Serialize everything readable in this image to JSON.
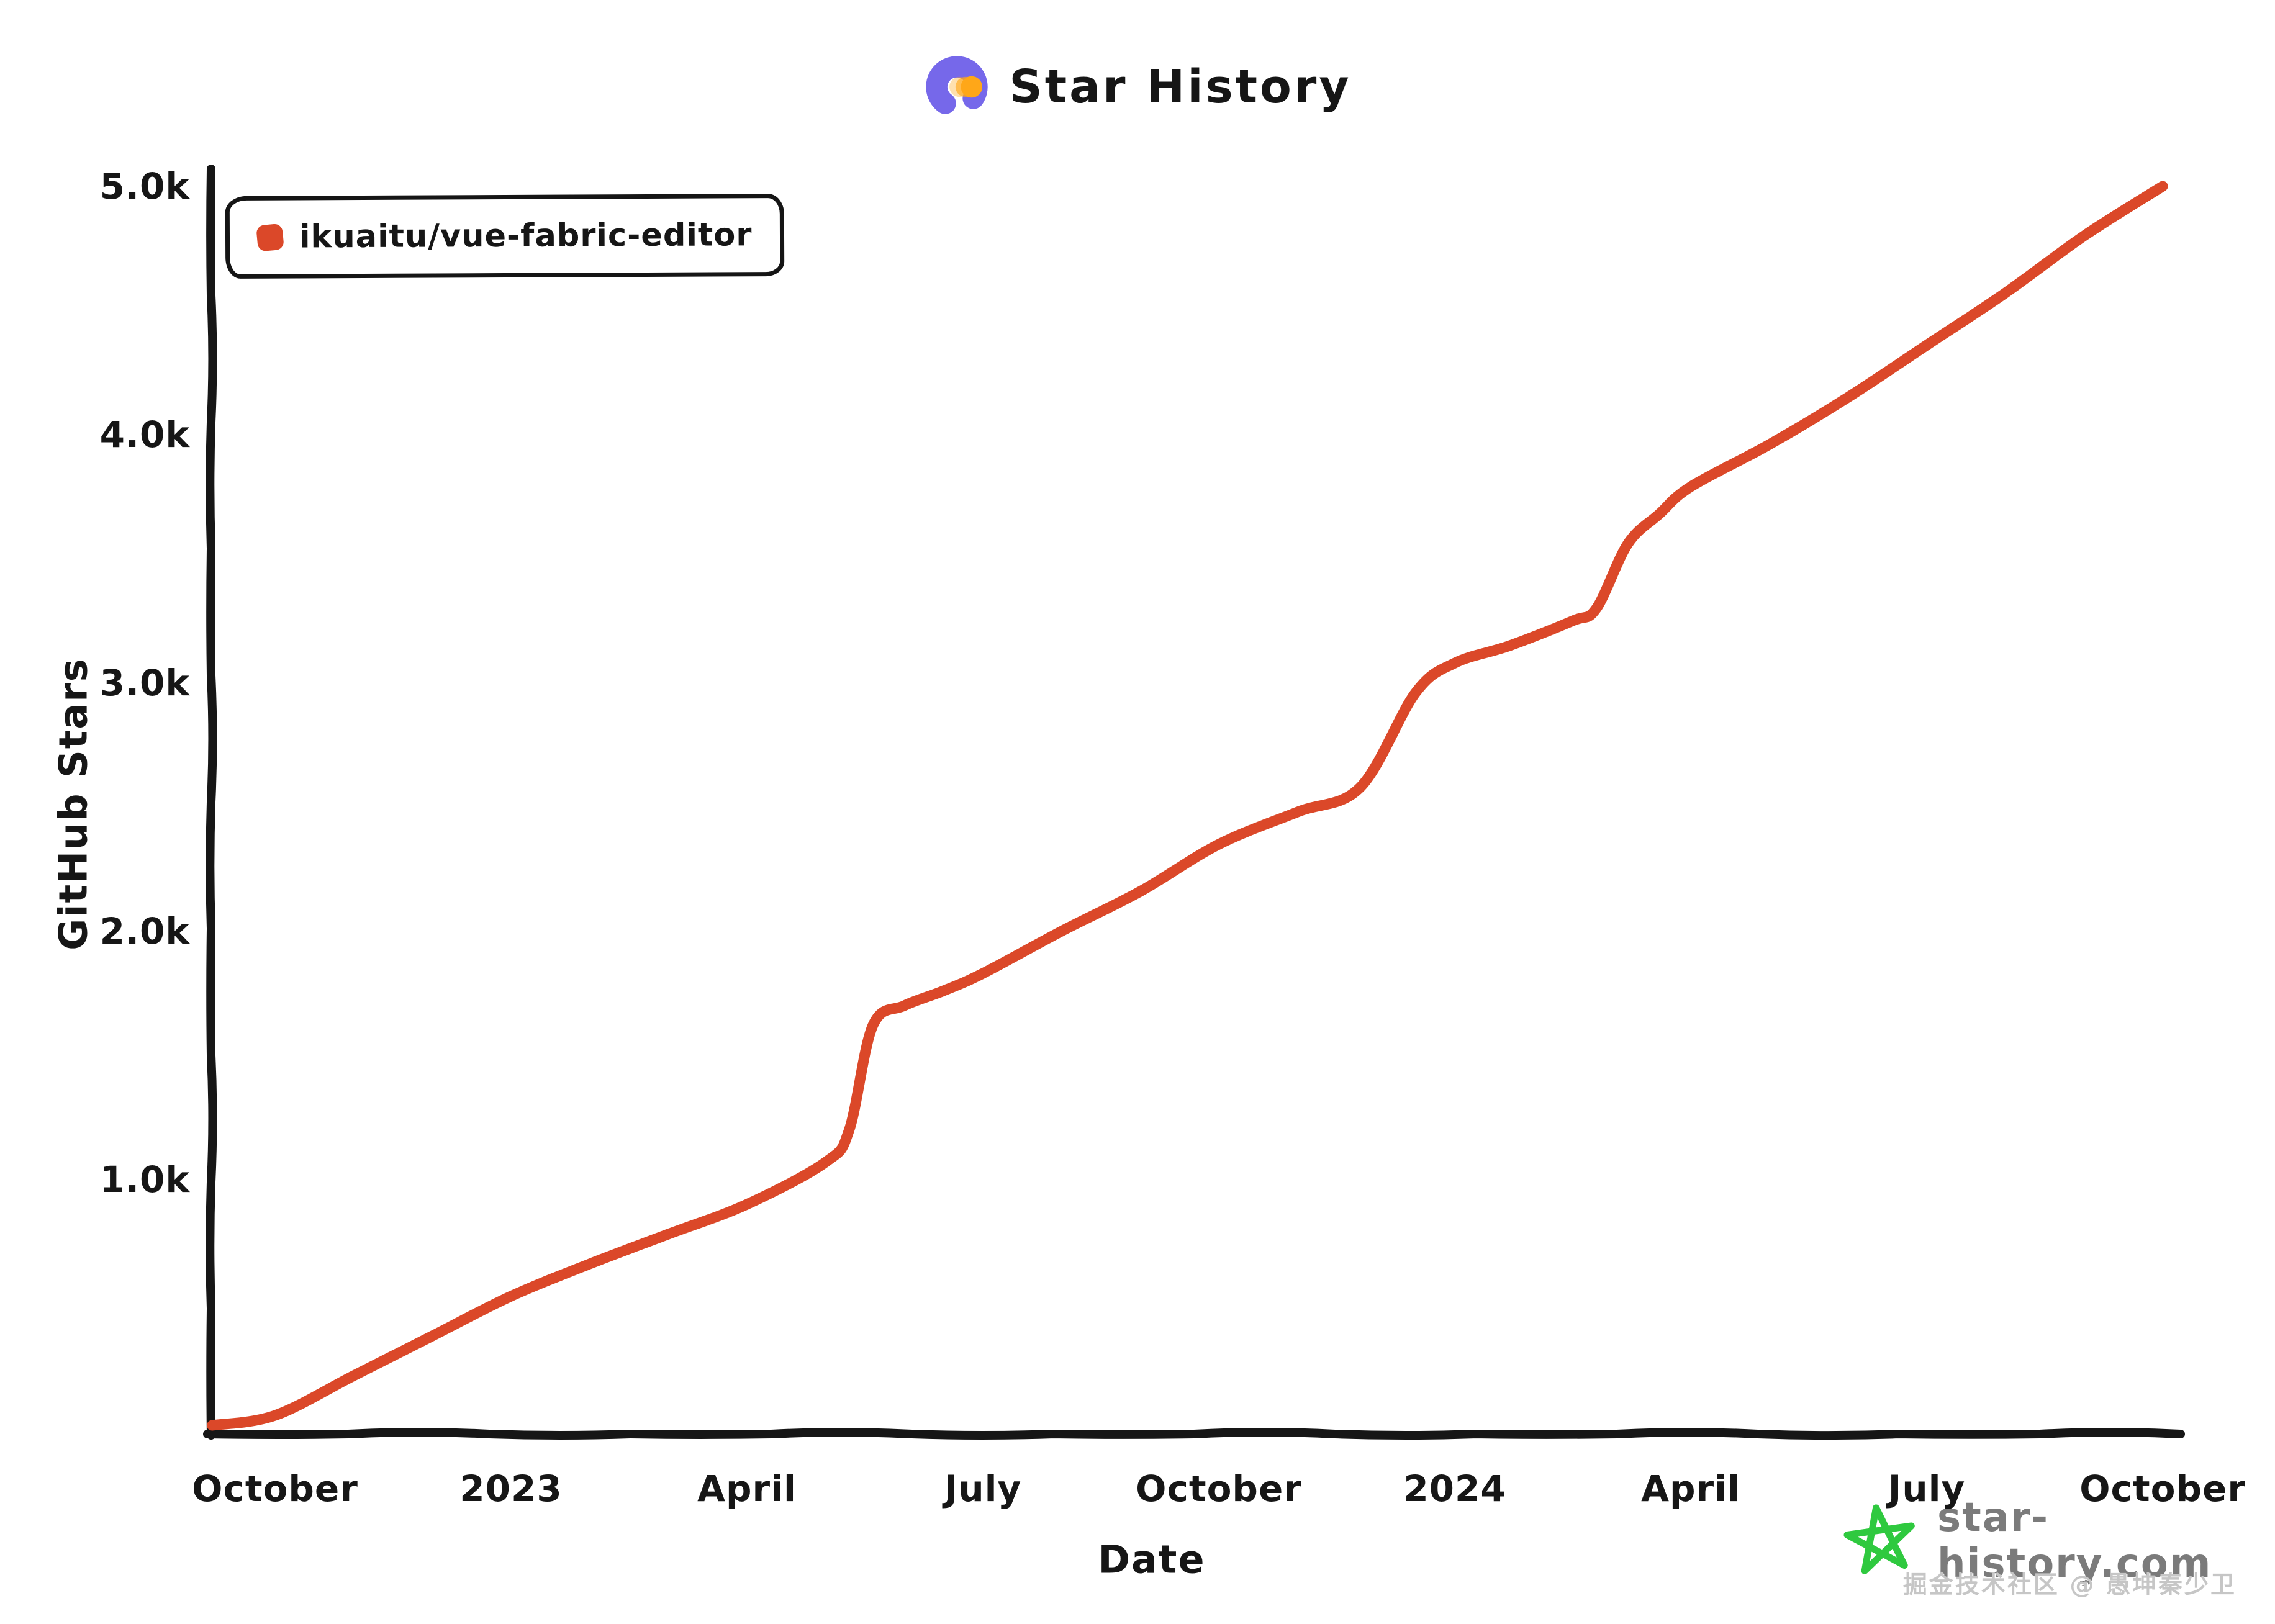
{
  "header": {
    "title": "Star History",
    "logo_icon": "star-history-logo-icon"
  },
  "legend": {
    "items": [
      {
        "label": "ikuaitu/vue-fabric-editor",
        "marker_color": "#DB4829"
      }
    ]
  },
  "axes": {
    "y_label": "GitHub Stars",
    "x_label": "Date"
  },
  "footer": {
    "site": "star-history.com",
    "site_icon": "green-star-icon",
    "watermark": "掘金技术社区 @ 愚坤秦少卫"
  },
  "colors": {
    "line": "#DB4829",
    "axis": "#161616",
    "logo_purple": "#7668EA",
    "logo_orange": "#FFA718",
    "star_green": "#2FC93F",
    "site_text": "#7b7b7b",
    "watermark_text": "#c6c6c6"
  },
  "chart_data": {
    "type": "line",
    "title": "Star History",
    "xlabel": "Date",
    "ylabel": "GitHub Stars",
    "grid": false,
    "legend_position": "top-left",
    "ylim": [
      0,
      5000
    ],
    "x_range_months": [
      -0.8,
      24
    ],
    "y_ticks": [
      {
        "label": "1.0k",
        "value": 1000
      },
      {
        "label": "2.0k",
        "value": 2000
      },
      {
        "label": "3.0k",
        "value": 3000
      },
      {
        "label": "4.0k",
        "value": 4000
      },
      {
        "label": "5.0k",
        "value": 5000
      }
    ],
    "x_ticks": [
      {
        "label": "October",
        "t": 0
      },
      {
        "label": "2023",
        "t": 3
      },
      {
        "label": "April",
        "t": 6
      },
      {
        "label": "July",
        "t": 9
      },
      {
        "label": "October",
        "t": 12
      },
      {
        "label": "2024",
        "t": 15
      },
      {
        "label": "April",
        "t": 18
      },
      {
        "label": "July",
        "t": 21
      },
      {
        "label": "October",
        "t": 24
      }
    ],
    "series": [
      {
        "name": "ikuaitu/vue-fabric-editor",
        "color": "#DB4829",
        "points": [
          {
            "date": "2022-09",
            "t": -0.8,
            "stars": 10
          },
          {
            "date": "2022-10",
            "t": 0,
            "stars": 50
          },
          {
            "date": "2022-11",
            "t": 1,
            "stars": 210
          },
          {
            "date": "2022-12",
            "t": 2,
            "stars": 370
          },
          {
            "date": "2023-01",
            "t": 3,
            "stars": 530
          },
          {
            "date": "2023-02",
            "t": 4,
            "stars": 660
          },
          {
            "date": "2023-03",
            "t": 5,
            "stars": 780
          },
          {
            "date": "2023-04",
            "t": 6,
            "stars": 900
          },
          {
            "date": "2023-05",
            "t": 7,
            "stars": 1070
          },
          {
            "date": "2023-05",
            "t": 7.3,
            "stars": 1200
          },
          {
            "date": "2023-05",
            "t": 7.6,
            "stars": 1620
          },
          {
            "date": "2023-06",
            "t": 8,
            "stars": 1700
          },
          {
            "date": "2023-06",
            "t": 8.5,
            "stars": 1760
          },
          {
            "date": "2023-07",
            "t": 9,
            "stars": 1830
          },
          {
            "date": "2023-08",
            "t": 10,
            "stars": 2000
          },
          {
            "date": "2023-09",
            "t": 11,
            "stars": 2160
          },
          {
            "date": "2023-10",
            "t": 12,
            "stars": 2350
          },
          {
            "date": "2023-11",
            "t": 13,
            "stars": 2480
          },
          {
            "date": "2023-11",
            "t": 13.8,
            "stars": 2580
          },
          {
            "date": "2023-12",
            "t": 14.5,
            "stars": 2960
          },
          {
            "date": "2024-01",
            "t": 15,
            "stars": 3080
          },
          {
            "date": "2024-01",
            "t": 15.7,
            "stars": 3150
          },
          {
            "date": "2024-02",
            "t": 16.5,
            "stars": 3250
          },
          {
            "date": "2024-02",
            "t": 16.8,
            "stars": 3300
          },
          {
            "date": "2024-03",
            "t": 17.2,
            "stars": 3560
          },
          {
            "date": "2024-03",
            "t": 17.6,
            "stars": 3680
          },
          {
            "date": "2024-04",
            "t": 18,
            "stars": 3790
          },
          {
            "date": "2024-05",
            "t": 19,
            "stars": 3960
          },
          {
            "date": "2024-06",
            "t": 20,
            "stars": 4150
          },
          {
            "date": "2024-07",
            "t": 21,
            "stars": 4360
          },
          {
            "date": "2024-08",
            "t": 22,
            "stars": 4570
          },
          {
            "date": "2024-09",
            "t": 23,
            "stars": 4800
          },
          {
            "date": "2024-10",
            "t": 24,
            "stars": 5000
          }
        ]
      }
    ]
  }
}
